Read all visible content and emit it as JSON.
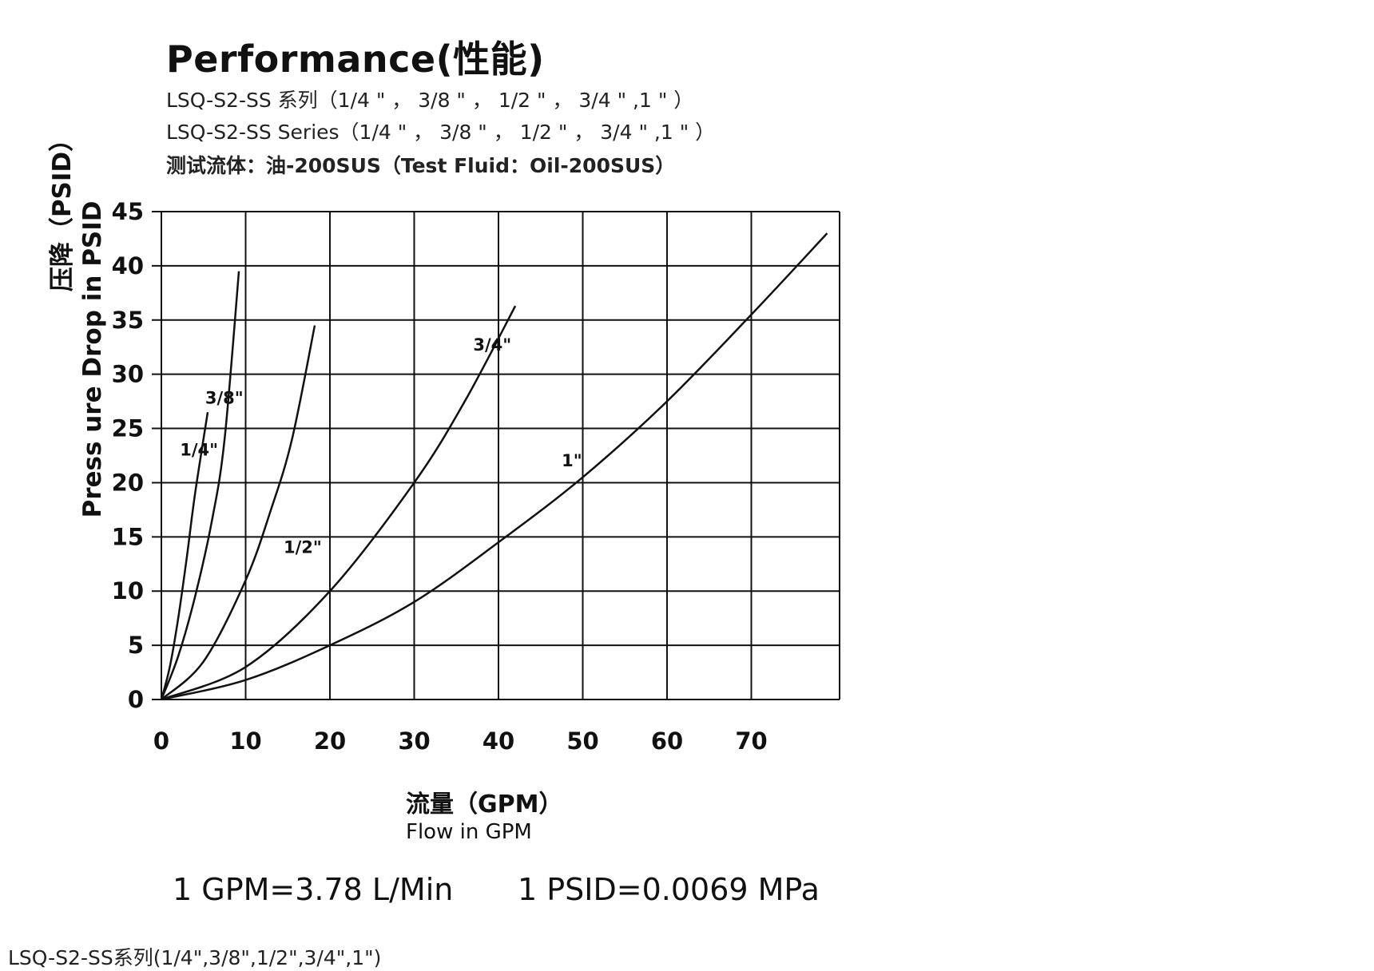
{
  "header": {
    "title": "Performance(性能)",
    "subtitle_cn": "LSQ-S2-SS 系列（1/4 \" ， 3/8 \" ， 1/2 \" ， 3/4 \" ,1 \" ）",
    "subtitle_en": "LSQ-S2-SS Series（1/4 \" ， 3/8 \" ， 1/2 \" ， 3/4 \" ,1 \" ）",
    "test_fluid": "测试流体：油-200SUS（Test Fluid：Oil-200SUS）"
  },
  "conversions": {
    "gpm": "1 GPM=3.78 L/Min",
    "psid": "1 PSID=0.0069 MPa"
  },
  "caption": "LSQ-S2-SS系列(1/4\",3/8\",1/2\",3/4\",1\")",
  "chart_data": {
    "type": "line",
    "xlabel_cn": "流量（GPM）",
    "xlabel": "Flow in GPM",
    "ylabel_cn": "压降（PSID）",
    "ylabel": "Press ure Drop in PSID",
    "xlim": [
      0,
      80
    ],
    "ylim": [
      0,
      45
    ],
    "x_ticks": [
      "0",
      "10",
      "20",
      "30",
      "40",
      "50",
      "60",
      "70"
    ],
    "y_ticks": [
      "0",
      "5",
      "10",
      "15",
      "20",
      "25",
      "30",
      "35",
      "40",
      "45"
    ],
    "grid": true,
    "series": [
      {
        "name": "1/4\"",
        "points": [
          [
            0,
            0
          ],
          [
            1,
            3
          ],
          [
            2,
            7.5
          ],
          [
            3,
            13
          ],
          [
            4,
            19
          ],
          [
            5.5,
            26.5
          ]
        ]
      },
      {
        "name": "3/8\"",
        "points": [
          [
            0,
            0
          ],
          [
            2,
            4
          ],
          [
            4,
            9.5
          ],
          [
            6,
            16.5
          ],
          [
            7.5,
            24
          ],
          [
            9.2,
            39.5
          ]
        ]
      },
      {
        "name": "1/2\"",
        "points": [
          [
            0,
            0
          ],
          [
            5,
            3.5
          ],
          [
            10,
            11
          ],
          [
            13,
            17.5
          ],
          [
            15.5,
            24
          ],
          [
            18.2,
            34.5
          ]
        ]
      },
      {
        "name": "3/4\"",
        "points": [
          [
            0,
            0
          ],
          [
            10,
            3
          ],
          [
            20,
            10
          ],
          [
            30,
            20
          ],
          [
            36,
            27.5
          ],
          [
            42,
            36.3
          ]
        ]
      },
      {
        "name": "1\"",
        "points": [
          [
            0,
            0
          ],
          [
            10,
            1.8
          ],
          [
            20,
            5
          ],
          [
            30,
            9
          ],
          [
            40,
            14.5
          ],
          [
            50,
            20.5
          ],
          [
            60,
            27.5
          ],
          [
            70,
            35.5
          ],
          [
            79,
            43
          ]
        ]
      }
    ],
    "labels": [
      {
        "text": "1/4\"",
        "x": 2.2,
        "y": 22.5
      },
      {
        "text": "3/8\"",
        "x": 5.2,
        "y": 27.3
      },
      {
        "text": "1/2\"",
        "x": 14.5,
        "y": 13.5
      },
      {
        "text": "3/4\"",
        "x": 37,
        "y": 32.2
      },
      {
        "text": "1\"",
        "x": 47.5,
        "y": 21.5
      }
    ]
  }
}
